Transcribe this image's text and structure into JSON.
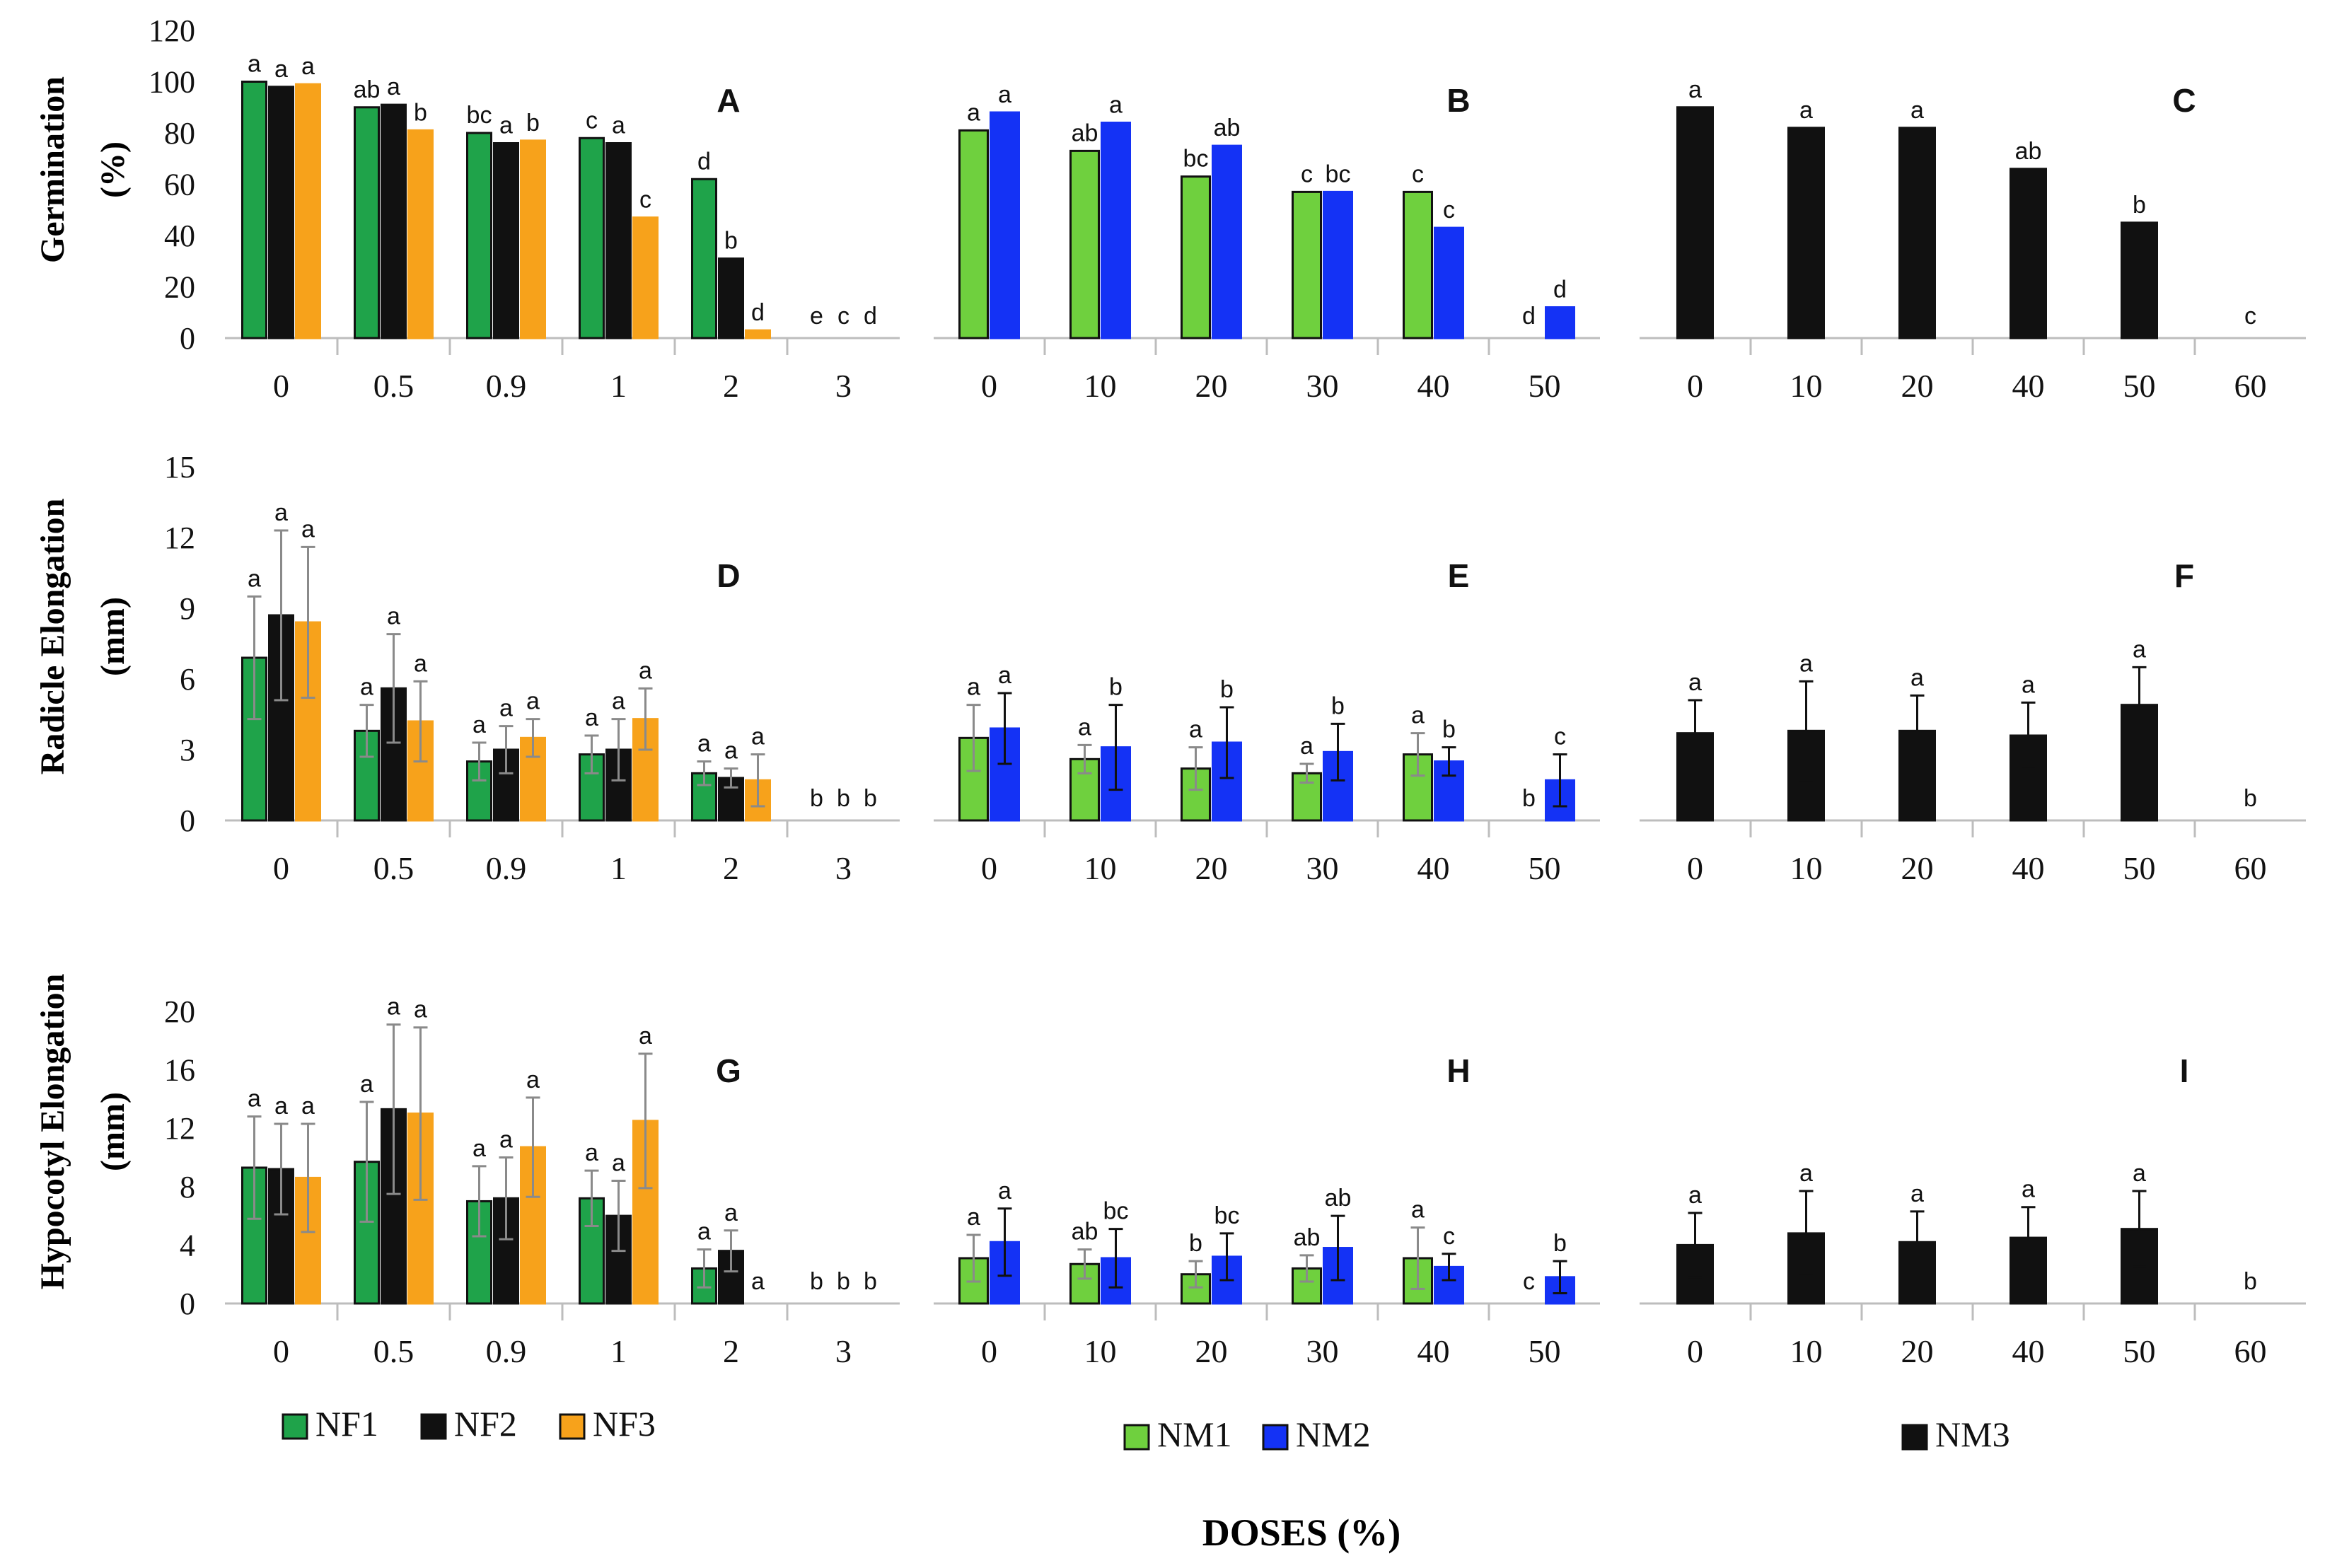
{
  "figure": {
    "xlabel": "DOSES (%)",
    "row_ylabels": [
      [
        "Germination",
        "(%)"
      ],
      [
        "Radicle Elongation",
        "(mm)"
      ],
      [
        "Hypocotyl Elongation",
        "(mm)"
      ]
    ],
    "legends": [
      {
        "entries": [
          {
            "label": "NF1",
            "color": "#1fa34a"
          },
          {
            "label": "NF2",
            "color": "#111111"
          },
          {
            "label": "NF3",
            "color": "#f7a21b"
          }
        ]
      },
      {
        "entries": [
          {
            "label": "NM1",
            "color": "#6fd03e"
          },
          {
            "label": "NM2",
            "color": "#1432f5"
          }
        ]
      },
      {
        "entries": [
          {
            "label": "NM3",
            "color": "#111111"
          }
        ]
      }
    ]
  },
  "chart_data": [
    {
      "panel": "A",
      "type": "bar",
      "row": 0,
      "col": 0,
      "yticks": [
        0,
        20,
        40,
        60,
        80,
        100,
        120
      ],
      "ylim": [
        0,
        120
      ],
      "categories": [
        "0",
        "0.5",
        "0.9",
        "1",
        "2",
        "3"
      ],
      "series": [
        {
          "name": "NF1",
          "color": "#1fa34a",
          "values": [
            100,
            90,
            80,
            78,
            62,
            0
          ],
          "letters": [
            "a",
            "ab",
            "bc",
            "c",
            "d",
            "e"
          ]
        },
        {
          "name": "NF2",
          "color": "#111111",
          "values": [
            98,
            91,
            76,
            76,
            31,
            0
          ],
          "letters": [
            "a",
            "a",
            "a",
            "a",
            "b",
            "c"
          ]
        },
        {
          "name": "NF3",
          "color": "#f7a21b",
          "values": [
            99,
            81,
            77,
            47,
            3,
            0
          ],
          "letters": [
            "a",
            "b",
            "b",
            "c",
            "d",
            "d"
          ]
        }
      ]
    },
    {
      "panel": "B",
      "type": "bar",
      "row": 0,
      "col": 1,
      "ylim": [
        0,
        120
      ],
      "categories": [
        "0",
        "10",
        "20",
        "30",
        "40",
        "50"
      ],
      "series": [
        {
          "name": "NM1",
          "color": "#6fd03e",
          "values": [
            81,
            73,
            63,
            57,
            57,
            0
          ],
          "letters": [
            "a",
            "ab",
            "bc",
            "c",
            "c",
            "d"
          ]
        },
        {
          "name": "NM2",
          "color": "#1432f5",
          "values": [
            88,
            84,
            75,
            57,
            43,
            12
          ],
          "letters": [
            "a",
            "a",
            "ab",
            "bc",
            "c",
            "d"
          ]
        }
      ]
    },
    {
      "panel": "C",
      "type": "bar",
      "row": 0,
      "col": 2,
      "ylim": [
        0,
        120
      ],
      "categories": [
        "0",
        "10",
        "20",
        "40",
        "50",
        "60"
      ],
      "series": [
        {
          "name": "NM3",
          "color": "#111111",
          "values": [
            90,
            82,
            82,
            66,
            45,
            0
          ],
          "letters": [
            "a",
            "a",
            "a",
            "ab",
            "b",
            "c"
          ]
        }
      ]
    },
    {
      "panel": "D",
      "type": "bar",
      "row": 1,
      "col": 0,
      "yticks": [
        0,
        3,
        6,
        9,
        12,
        15
      ],
      "ylim": [
        0,
        15
      ],
      "categories": [
        "0",
        "0.5",
        "0.9",
        "1",
        "2",
        "3"
      ],
      "series": [
        {
          "name": "NF1",
          "color": "#1fa34a",
          "values": [
            6.9,
            3.8,
            2.5,
            2.8,
            2.0,
            0
          ],
          "errors": [
            2.6,
            1.1,
            0.8,
            0.8,
            0.5,
            0
          ],
          "letters": [
            "a",
            "a",
            "a",
            "a",
            "a",
            "b"
          ]
        },
        {
          "name": "NF2",
          "color": "#111111",
          "values": [
            8.7,
            5.6,
            3.0,
            3.0,
            1.8,
            0
          ],
          "errors": [
            3.6,
            2.3,
            1.0,
            1.3,
            0.4,
            0
          ],
          "letters": [
            "a",
            "a",
            "a",
            "a",
            "a",
            "b"
          ]
        },
        {
          "name": "NF3",
          "color": "#f7a21b",
          "values": [
            8.4,
            4.2,
            3.5,
            4.3,
            1.7,
            0
          ],
          "errors": [
            3.2,
            1.7,
            0.8,
            1.3,
            1.1,
            0
          ],
          "letters": [
            "a",
            "a",
            "a",
            "a",
            "a",
            "b"
          ]
        }
      ]
    },
    {
      "panel": "E",
      "type": "bar",
      "row": 1,
      "col": 1,
      "ylim": [
        0,
        15
      ],
      "categories": [
        "0",
        "10",
        "20",
        "30",
        "40",
        "50"
      ],
      "series": [
        {
          "name": "NM1",
          "color": "#6fd03e",
          "values": [
            3.5,
            2.6,
            2.2,
            2.0,
            2.8,
            0
          ],
          "errors": [
            1.4,
            0.6,
            0.9,
            0.4,
            0.9,
            0
          ],
          "letters": [
            "a",
            "a",
            "a",
            "a",
            "a",
            "b"
          ]
        },
        {
          "name": "NM2",
          "color": "#1432f5",
          "values": [
            3.9,
            3.1,
            3.3,
            2.9,
            2.5,
            1.7
          ],
          "errors": [
            1.5,
            1.8,
            1.5,
            1.2,
            0.6,
            1.1
          ],
          "letters": [
            "a",
            "b",
            "b",
            "b",
            "b",
            "c"
          ]
        }
      ]
    },
    {
      "panel": "F",
      "type": "bar",
      "row": 1,
      "col": 2,
      "ylim": [
        0,
        15
      ],
      "categories": [
        "0",
        "10",
        "20",
        "40",
        "50",
        "60"
      ],
      "series": [
        {
          "name": "NM3",
          "color": "#111111",
          "values": [
            3.7,
            3.8,
            3.8,
            3.6,
            4.9,
            0
          ],
          "errors": [
            1.4,
            2.1,
            1.5,
            1.4,
            1.6,
            0
          ],
          "letters": [
            "a",
            "a",
            "a",
            "a",
            "a",
            "b"
          ]
        }
      ]
    },
    {
      "panel": "G",
      "type": "bar",
      "row": 2,
      "col": 0,
      "yticks": [
        0,
        4,
        8,
        12,
        16,
        20
      ],
      "ylim": [
        0,
        20
      ],
      "categories": [
        "0",
        "0.5",
        "0.9",
        "1",
        "2",
        "3"
      ],
      "series": [
        {
          "name": "NF1",
          "color": "#1fa34a",
          "values": [
            9.3,
            9.7,
            7.0,
            7.2,
            2.4,
            0
          ],
          "errors": [
            3.5,
            4.1,
            2.4,
            1.9,
            1.3,
            0
          ],
          "letters": [
            "a",
            "a",
            "a",
            "a",
            "a",
            "b"
          ]
        },
        {
          "name": "NF2",
          "color": "#111111",
          "values": [
            9.2,
            13.3,
            7.2,
            6.0,
            3.6,
            0
          ],
          "errors": [
            3.1,
            5.8,
            2.8,
            2.4,
            1.4,
            0
          ],
          "letters": [
            "a",
            "a",
            "a",
            "a",
            "a",
            "b"
          ]
        },
        {
          "name": "NF3",
          "color": "#f7a21b",
          "values": [
            8.6,
            13.0,
            10.7,
            12.5,
            0,
            0
          ],
          "errors": [
            3.7,
            5.9,
            3.4,
            4.6,
            0,
            0
          ],
          "letters": [
            "a",
            "a",
            "a",
            "a",
            "a",
            "b"
          ]
        }
      ]
    },
    {
      "panel": "H",
      "type": "bar",
      "row": 2,
      "col": 1,
      "ylim": [
        0,
        20
      ],
      "categories": [
        "0",
        "10",
        "20",
        "30",
        "40",
        "50"
      ],
      "series": [
        {
          "name": "NM1",
          "color": "#6fd03e",
          "values": [
            3.1,
            2.7,
            2.0,
            2.4,
            3.1,
            0
          ],
          "errors": [
            1.6,
            1.0,
            0.9,
            0.9,
            2.1,
            0
          ],
          "letters": [
            "a",
            "ab",
            "b",
            "ab",
            "a",
            "c"
          ]
        },
        {
          "name": "NM2",
          "color": "#1432f5",
          "values": [
            4.2,
            3.1,
            3.2,
            3.8,
            2.5,
            1.8
          ],
          "errors": [
            2.3,
            2.0,
            1.6,
            2.2,
            0.9,
            1.1
          ],
          "letters": [
            "a",
            "bc",
            "bc",
            "ab",
            "c",
            "b"
          ]
        }
      ]
    },
    {
      "panel": "I",
      "type": "bar",
      "row": 2,
      "col": 2,
      "ylim": [
        0,
        20
      ],
      "categories": [
        "0",
        "10",
        "20",
        "40",
        "50",
        "60"
      ],
      "series": [
        {
          "name": "NM3",
          "color": "#111111",
          "values": [
            4.0,
            4.8,
            4.2,
            4.5,
            5.1,
            0
          ],
          "errors": [
            2.2,
            2.9,
            2.1,
            2.1,
            2.6,
            0
          ],
          "letters": [
            "a",
            "a",
            "a",
            "a",
            "a",
            "b"
          ]
        }
      ]
    }
  ]
}
